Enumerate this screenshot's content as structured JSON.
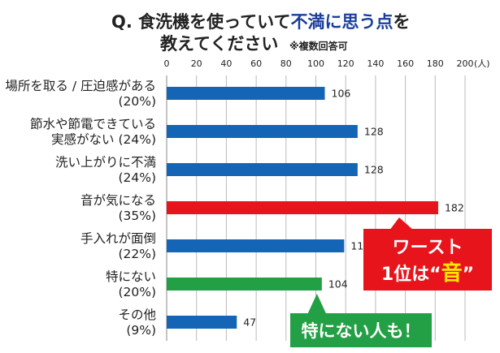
{
  "chart_data": {
    "type": "bar",
    "orientation": "horizontal",
    "title_prefix": "Q. 食洗機を使っていて",
    "title_accent": "不満に思う点",
    "title_suffix": "を",
    "title_line2": "教えてください",
    "title_note": "※複数回答可",
    "unit": "(人)",
    "xlim": [
      0,
      200
    ],
    "xticks": [
      0,
      20,
      40,
      60,
      80,
      100,
      120,
      140,
      160,
      180,
      200
    ],
    "grid": true,
    "categories": [
      {
        "label": [
          "場所を取る / 圧迫感がある",
          "(20%)"
        ],
        "value": 106,
        "color": "#1565b7"
      },
      {
        "label": [
          "節水や節電できている",
          "実感がない (24%)"
        ],
        "value": 128,
        "color": "#1565b7"
      },
      {
        "label": [
          "洗い上がりに不満",
          "(24%)"
        ],
        "value": 128,
        "color": "#1565b7"
      },
      {
        "label": [
          "音が気になる",
          "(35%)"
        ],
        "value": 182,
        "color": "#e8141c"
      },
      {
        "label": [
          "手入れが面倒",
          "(22%)"
        ],
        "value": 119,
        "color": "#1565b7"
      },
      {
        "label": [
          "特にない",
          "(20%)"
        ],
        "value": 104,
        "color": "#23a045"
      },
      {
        "label": [
          "その他",
          "(9%)"
        ],
        "value": 47,
        "color": "#1565b7"
      }
    ],
    "annotations": [
      {
        "id": "worst",
        "lines": [
          "ワースト",
          "1位は“",
          "音",
          "”"
        ],
        "color": "#e8141c",
        "highlight": "#ffe800",
        "target": 3
      },
      {
        "id": "none",
        "lines": [
          "特にない人も！"
        ],
        "color": "#23a045",
        "target": 5
      }
    ]
  }
}
